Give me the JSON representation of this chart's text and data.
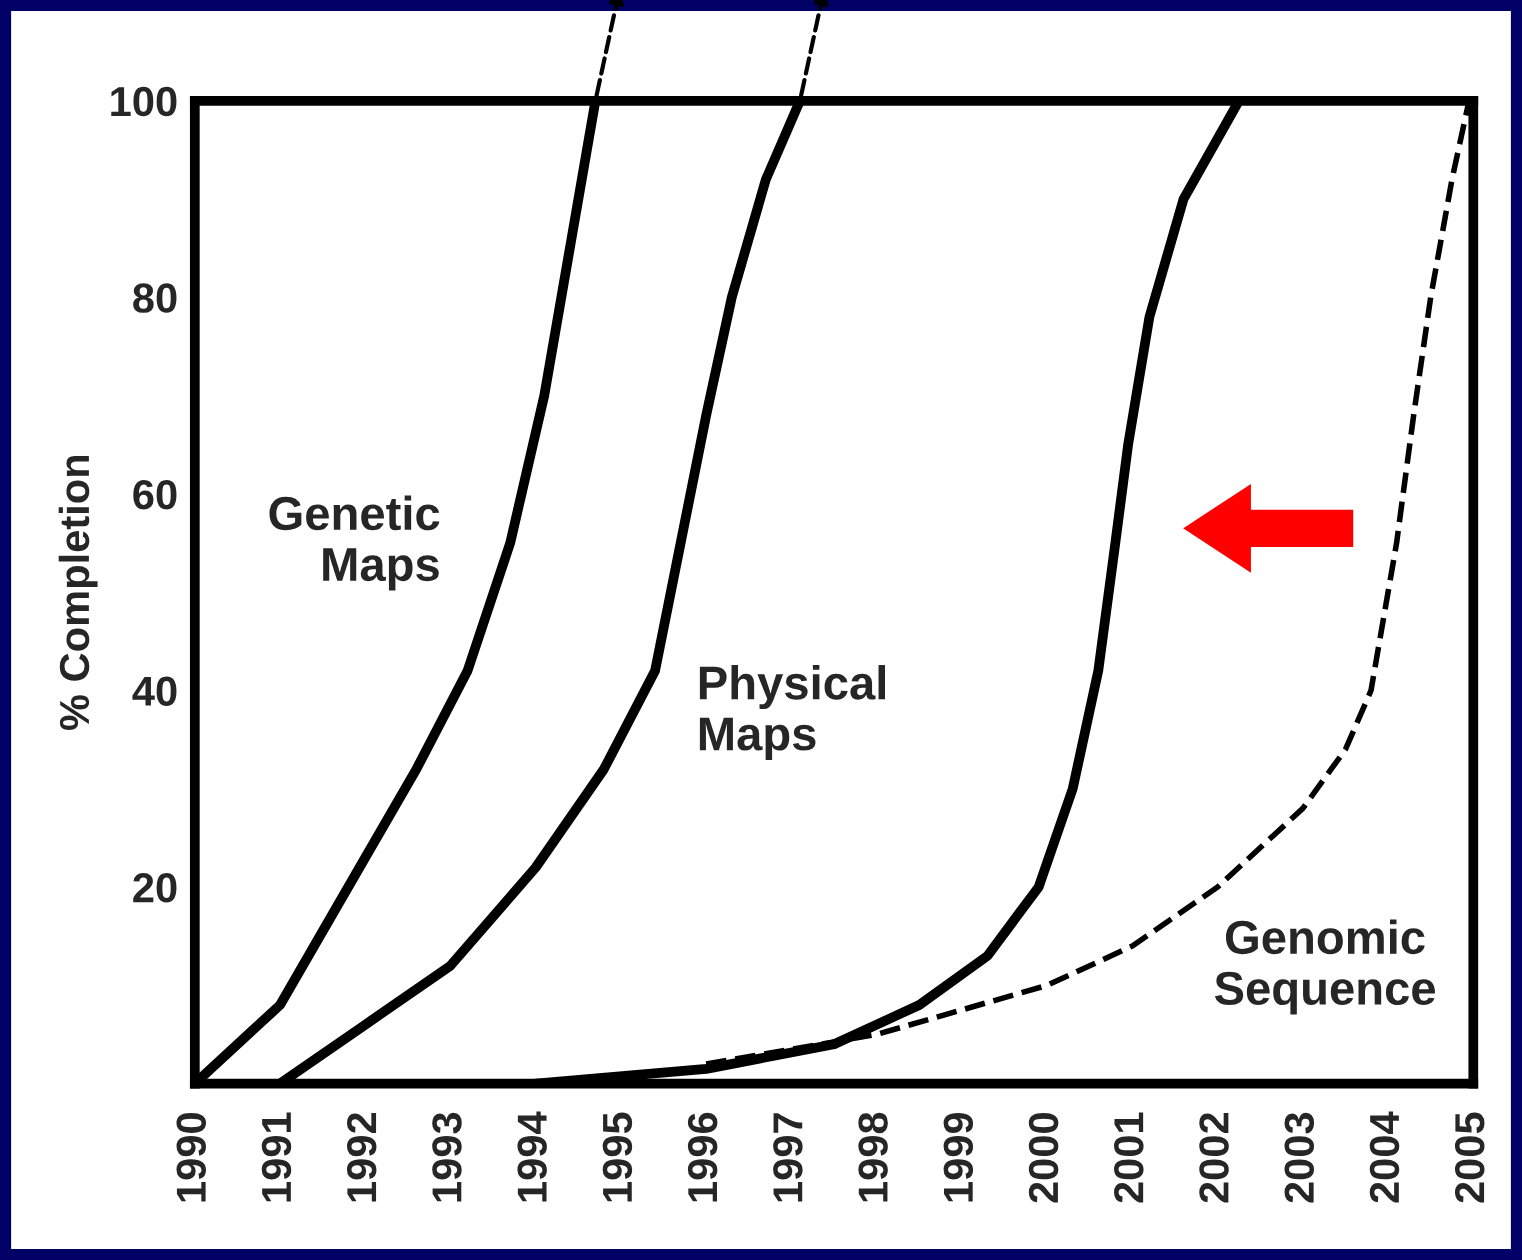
{
  "chart_data": {
    "type": "line",
    "ylabel": "% Completion",
    "xlim": [
      1990,
      2005
    ],
    "ylim": [
      0,
      100
    ],
    "xticks": [
      1990,
      1991,
      1992,
      1993,
      1994,
      1995,
      1996,
      1997,
      1998,
      1999,
      2000,
      2001,
      2002,
      2003,
      2004,
      2005
    ],
    "yticks": [
      20,
      40,
      60,
      80,
      100
    ],
    "grid": false,
    "legend": false,
    "marker": "none",
    "series": [
      {
        "name": "Genetic\nMaps",
        "color": "#000000",
        "line_style": "solid",
        "x": [
          1990,
          1991,
          1991.8,
          1992.6,
          1993.2,
          1993.7,
          1994.1,
          1994.4,
          1994.7
        ],
        "values": [
          0,
          8,
          20,
          32,
          42,
          55,
          70,
          85,
          100
        ]
      },
      {
        "name": "Physical\nMaps",
        "color": "#000000",
        "line_style": "solid",
        "x": [
          1991,
          1992,
          1993,
          1994,
          1994.8,
          1995.4,
          1995.7,
          1996,
          1996.3,
          1996.7,
          1997.1
        ],
        "values": [
          0,
          6,
          12,
          22,
          32,
          42,
          55,
          68,
          80,
          92,
          100
        ]
      },
      {
        "color": "#000000",
        "line_style": "solid",
        "x": [
          1994,
          1996,
          1997.5,
          1998.5,
          1999.3,
          1999.9,
          2000.3,
          2000.6,
          2000.8,
          2000.95,
          2001.2,
          2001.6,
          2002.25
        ],
        "values": [
          0,
          1.5,
          4,
          8,
          13,
          20,
          30,
          42,
          55,
          65,
          78,
          90,
          100
        ]
      },
      {
        "name": "Genomic\nSequence",
        "color": "#000000",
        "line_style": "dashed",
        "x": [
          1996,
          1998,
          2000,
          2001,
          2002,
          2003,
          2003.5,
          2003.8,
          2004.1,
          2004.3,
          2004.5,
          2004.75,
          2004.95
        ],
        "values": [
          2,
          5,
          10,
          14,
          20,
          28,
          34,
          40,
          55,
          68,
          80,
          92,
          100
        ]
      }
    ]
  }
}
